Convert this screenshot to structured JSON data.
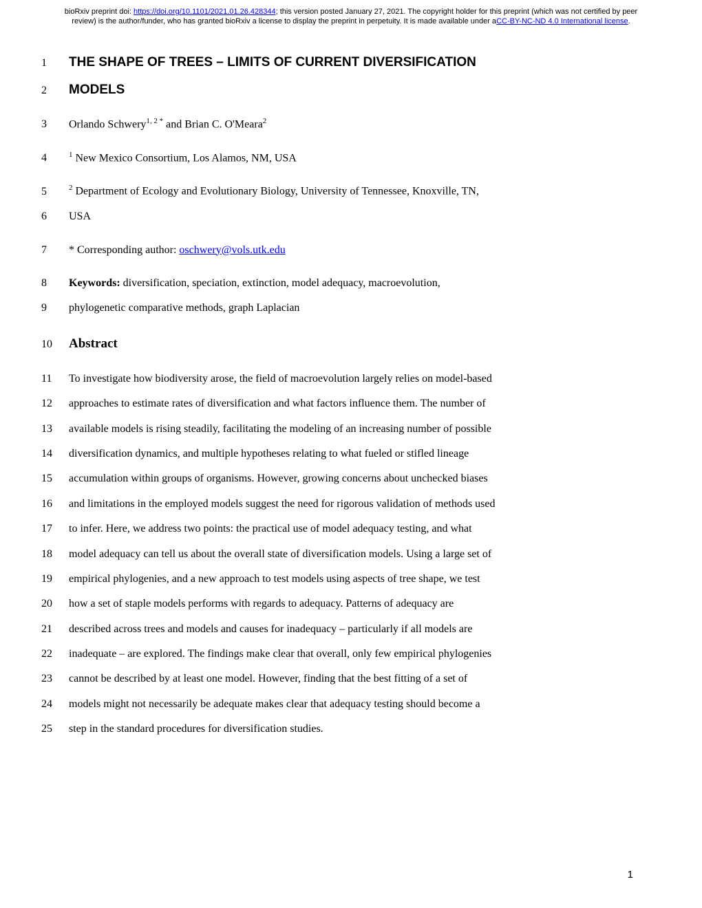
{
  "header": {
    "doi_prefix": "bioRxiv preprint doi: ",
    "doi_url": "https://doi.org/10.1101/2021.01.26.428344",
    "version_text": "; this version posted January 27, 2021. The copyright holder for this preprint (which was not certified by peer review) is the author/funder, who has granted bioRxiv a license to display the preprint in perpetuity. It is made available under a",
    "license_text": "CC-BY-NC-ND 4.0 International license",
    "license_suffix": "."
  },
  "title": {
    "line1_num": "1",
    "line1_text": "THE SHAPE OF TREES – LIMITS OF CURRENT DIVERSIFICATION",
    "line2_num": "2",
    "line2_text": "MODELS"
  },
  "authors": {
    "num": "3",
    "name1": "Orlando Schwery",
    "sup1": "1, 2 *",
    "and": " and Brian C. O'Meara",
    "sup2": "2"
  },
  "affil1": {
    "num": "4",
    "sup": "1",
    "text": " New Mexico Consortium, Los Alamos, NM, USA"
  },
  "affil2": {
    "num1": "5",
    "sup": "2",
    "text1": " Department of Ecology and Evolutionary Biology, University of Tennessee, Knoxville, TN,",
    "num2": "6",
    "text2": "USA"
  },
  "corresponding": {
    "num": "7",
    "prefix": "* Corresponding author: ",
    "email": "oschwery@vols.utk.edu"
  },
  "keywords": {
    "num1": "8",
    "label": "Keywords:",
    "text1": " diversification, speciation, extinction, model adequacy, macroevolution,",
    "num2": "9",
    "text2": "phylogenetic comparative methods, graph Laplacian"
  },
  "abstract_heading": {
    "num": "10",
    "text": "Abstract"
  },
  "abstract_lines": [
    {
      "num": "11",
      "text": "To investigate how biodiversity arose, the field of macroevolution largely relies on model-based"
    },
    {
      "num": "12",
      "text": "approaches to estimate rates of diversification and what factors influence them. The number of"
    },
    {
      "num": "13",
      "text": "available models is rising steadily, facilitating the modeling of an increasing number of possible"
    },
    {
      "num": "14",
      "text": "diversification dynamics, and multiple hypotheses relating to what fueled or stifled lineage"
    },
    {
      "num": "15",
      "text": "accumulation within groups of organisms. However, growing concerns about unchecked biases"
    },
    {
      "num": "16",
      "text": "and limitations in the employed models suggest the need for rigorous validation of methods used"
    },
    {
      "num": "17",
      "text": "to infer. Here, we address two points: the practical use of model adequacy testing, and what"
    },
    {
      "num": "18",
      "text": "model adequacy can tell us about the overall state of diversification models. Using a large set of"
    },
    {
      "num": "19",
      "text": "empirical phylogenies, and a new approach to test models using aspects of tree shape, we test"
    },
    {
      "num": "20",
      "text": "how a set of staple models performs with regards to adequacy. Patterns of adequacy are"
    },
    {
      "num": "21",
      "text": "described across trees and models and causes for inadequacy – particularly if all models are"
    },
    {
      "num": "22",
      "text": "inadequate – are explored. The findings make clear that overall, only few empirical phylogenies"
    },
    {
      "num": "23",
      "text": "cannot be described by at least one model. However, finding that the best fitting of a set of"
    },
    {
      "num": "24",
      "text": "models might not necessarily be adequate makes clear that adequacy testing should become a"
    },
    {
      "num": "25",
      "text": "step in the standard procedures for diversification studies."
    }
  ],
  "page_number": "1"
}
